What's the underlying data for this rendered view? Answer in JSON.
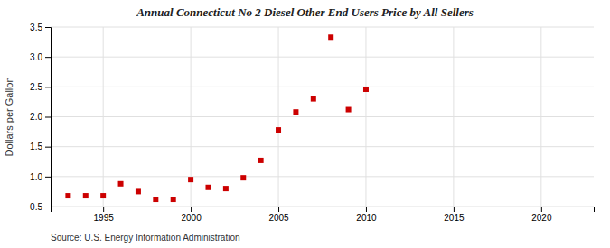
{
  "chart_data": {
    "type": "scatter",
    "title": "Annual Connecticut No 2 Diesel Other End Users Price by All Sellers",
    "ylabel": "Dollars per Gallon",
    "annotations": [
      "Source: U.S. Energy Information Administration"
    ],
    "x": [
      1993,
      1994,
      1995,
      1996,
      1997,
      1998,
      1999,
      2000,
      2001,
      2002,
      2003,
      2004,
      2005,
      2006,
      2007,
      2008,
      2009,
      2010
    ],
    "values": [
      0.68,
      0.68,
      0.68,
      0.88,
      0.75,
      0.62,
      0.62,
      0.95,
      0.82,
      0.8,
      0.98,
      1.27,
      1.78,
      2.08,
      2.3,
      3.33,
      2.12,
      2.46
    ],
    "color": "#cc0000",
    "marker": "square",
    "xlim": [
      1992,
      2023
    ],
    "ylim": [
      0.5,
      3.5
    ],
    "xticks": [
      1995,
      2000,
      2005,
      2010,
      2015,
      2020
    ],
    "yticks": [
      0.5,
      {
        "value": 1.0,
        "label": "1.0"
      },
      1.5,
      {
        "value": 2.0,
        "label": "2.0"
      },
      2.5,
      {
        "value": 3.0,
        "label": "3.0"
      },
      3.5
    ],
    "grid": true
  }
}
